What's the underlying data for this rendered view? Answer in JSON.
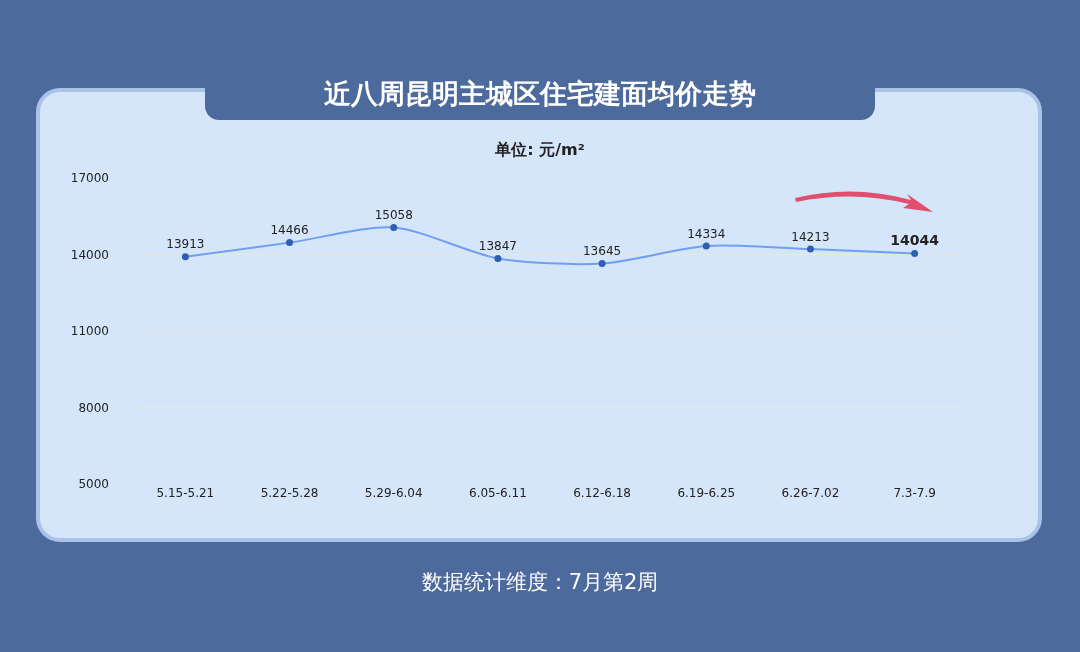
{
  "chart_data": {
    "type": "line",
    "title": "近八周昆明主城区住宅建面均价走势",
    "subtitle": "单位: 元/m²",
    "categories": [
      "5.15-5.21",
      "5.22-5.28",
      "5.29-6.04",
      "6.05-6.11",
      "6.12-6.18",
      "6.19-6.25",
      "6.26-7.02",
      "7.3-7.9"
    ],
    "series": [
      {
        "color": "#6f9ff0",
        "values": [
          13913,
          14466,
          15058,
          13847,
          13645,
          14334,
          14213,
          14044
        ]
      }
    ],
    "ylim": [
      5000,
      17000
    ],
    "yticks": [
      5000,
      8000,
      11000,
      14000,
      17000
    ],
    "grid": "y",
    "marker": "circle",
    "line_style": "solid",
    "data_labels": true,
    "annotations": [
      "数据统计维度：7月第2周"
    ]
  }
}
